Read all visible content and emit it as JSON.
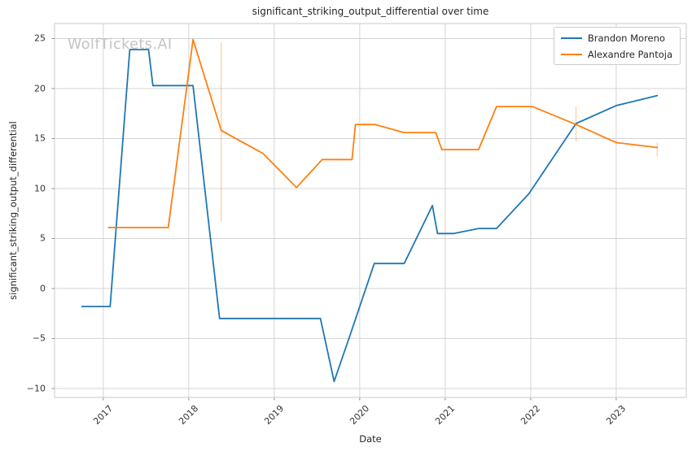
{
  "watermark": "WolfTickets.AI",
  "chart_data": {
    "type": "line",
    "title": "significant_striking_output_differential over time",
    "xlabel": "Date",
    "ylabel": "significant_striking_output_differential",
    "grid": true,
    "legend_position": "upper right",
    "xlim": [
      2016.43,
      2023.82
    ],
    "ylim": [
      -10.9,
      26.5
    ],
    "x_ticks": [
      2017,
      2018,
      2019,
      2020,
      2021,
      2022,
      2023
    ],
    "y_ticks": [
      25,
      20,
      15,
      10,
      5,
      0,
      -5,
      -10
    ],
    "style": {
      "grid_color": "#d4d4d4",
      "frame_color": "#c9c9c9",
      "tick_color": "#8c8c8c",
      "text_color": "#262626",
      "watermark_color": "#c4c4c4",
      "error_bar_alpha": 0.3,
      "line_width": 1.8
    },
    "series": [
      {
        "name": "Brandon Moreno",
        "color": "#1f77b4",
        "points": [
          [
            2016.75,
            -1.8
          ],
          [
            2017.08,
            -1.8
          ],
          [
            2017.31,
            23.9
          ],
          [
            2017.53,
            23.9
          ],
          [
            2017.58,
            20.3
          ],
          [
            2018.05,
            20.3
          ],
          [
            2018.36,
            -3.0
          ],
          [
            2019.54,
            -3.0
          ],
          [
            2019.7,
            -9.3
          ],
          [
            2019.89,
            -4.6
          ],
          [
            2020.17,
            2.5
          ],
          [
            2020.52,
            2.5
          ],
          [
            2020.85,
            8.3
          ],
          [
            2020.91,
            5.5
          ],
          [
            2021.1,
            5.5
          ],
          [
            2021.39,
            6.0
          ],
          [
            2021.6,
            6.0
          ],
          [
            2021.98,
            9.5
          ],
          [
            2022.53,
            16.5
          ],
          [
            2023.0,
            18.3
          ],
          [
            2023.48,
            19.3
          ]
        ],
        "error_bars": []
      },
      {
        "name": "Alexandre Pantoja",
        "color": "#ff7f0e",
        "points": [
          [
            2017.06,
            6.1
          ],
          [
            2017.76,
            6.1
          ],
          [
            2018.05,
            24.9
          ],
          [
            2018.38,
            15.8
          ],
          [
            2018.87,
            13.5
          ],
          [
            2019.26,
            10.1
          ],
          [
            2019.56,
            12.9
          ],
          [
            2019.91,
            12.9
          ],
          [
            2019.95,
            16.4
          ],
          [
            2020.18,
            16.4
          ],
          [
            2020.52,
            15.6
          ],
          [
            2020.89,
            15.6
          ],
          [
            2020.96,
            13.9
          ],
          [
            2021.39,
            13.9
          ],
          [
            2021.6,
            18.2
          ],
          [
            2022.02,
            18.2
          ],
          [
            2022.53,
            16.4
          ],
          [
            2023.0,
            14.6
          ],
          [
            2023.48,
            14.1
          ]
        ],
        "error_bars": [
          {
            "x": 2018.38,
            "low": 6.7,
            "high": 24.6
          },
          {
            "x": 2022.53,
            "low": 14.7,
            "high": 18.2
          },
          {
            "x": 2023.48,
            "low": 13.2,
            "high": 14.6
          }
        ]
      }
    ]
  }
}
